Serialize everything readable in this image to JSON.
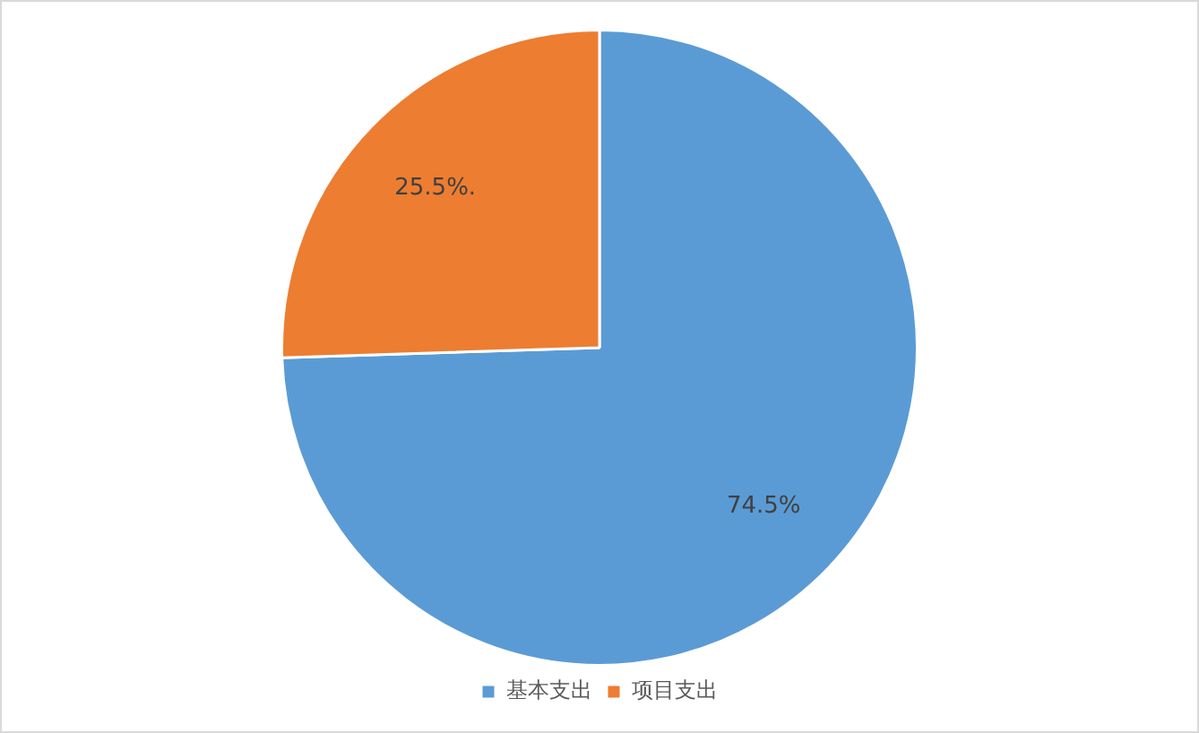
{
  "chart_data": {
    "type": "pie",
    "categories": [
      "基本支出",
      "项目支出"
    ],
    "values": [
      74.5,
      25.5
    ],
    "colors": [
      "#5b9bd5",
      "#ed7d31"
    ],
    "value_labels": [
      "74.5%",
      "25.5%."
    ],
    "legend": "bottom"
  }
}
